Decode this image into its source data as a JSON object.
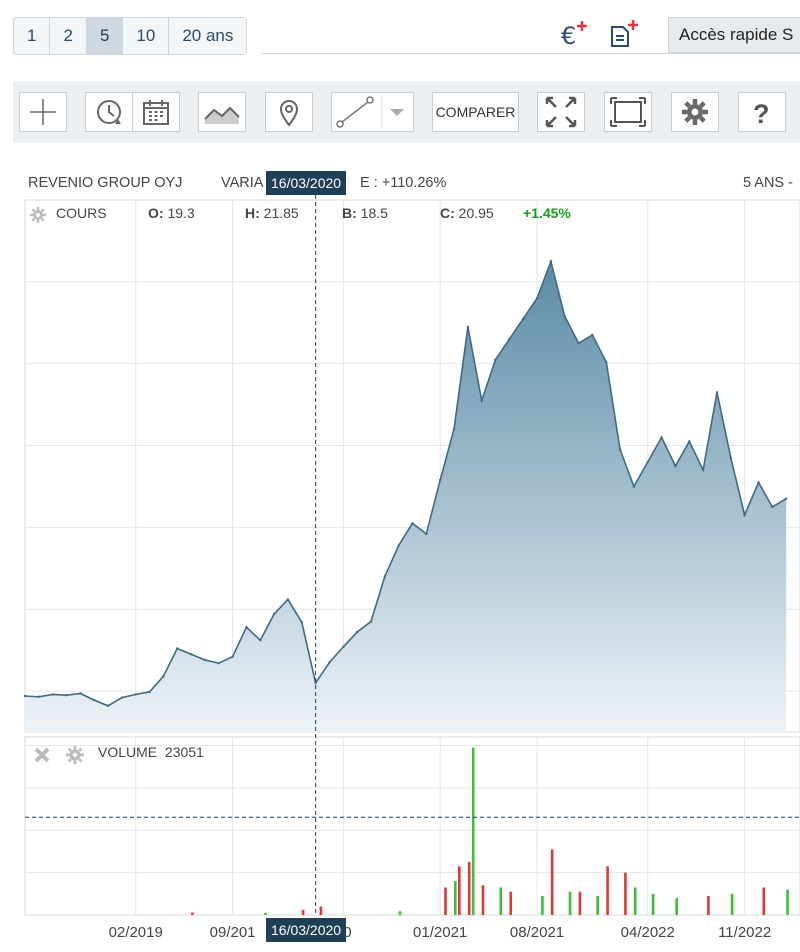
{
  "period_tabs": [
    {
      "label": "1",
      "active": false
    },
    {
      "label": "2",
      "active": false
    },
    {
      "label": "5",
      "active": true
    },
    {
      "label": "10",
      "active": false
    },
    {
      "label": "20 ans",
      "active": false
    }
  ],
  "quick_access": "Accès rapide S",
  "toolbar": {
    "compare_label": "COMPARER"
  },
  "info": {
    "name": "REVENIO GROUP OYJ",
    "variation_prefix": "VARIA",
    "variation_suffix": "E : +110.26%",
    "period": "5 ANS -"
  },
  "cursor_date": "16/03/2020",
  "ohlc": {
    "label": "COURS",
    "open_label": "O:",
    "open": "19.3",
    "high_label": "H:",
    "high": "21.85",
    "low_label": "B:",
    "low": "18.5",
    "close_label": "C:",
    "close": "20.95",
    "change": "+1.45%"
  },
  "volume": {
    "label": "VOLUME",
    "value": "23051"
  },
  "colors": {
    "line": "#3f6a85",
    "fill_top": "#5b8ba6",
    "fill_bottom": "#eef3f7",
    "vol_up": "#3cbf36",
    "vol_down": "#e0383a",
    "badge": "#1f3f57",
    "positive": "#1a9a1a"
  },
  "chart_data": {
    "type": "area",
    "x_tick_labels": [
      "02/2019",
      "09/201",
      "20",
      "01/2021",
      "08/2021",
      "04/2022",
      "11/2022"
    ],
    "price_points": [
      [
        "2018-06",
        19.4
      ],
      [
        "2018-07",
        19.3
      ],
      [
        "2018-08",
        19.6
      ],
      [
        "2018-09",
        19.5
      ],
      [
        "2018-10",
        19.7
      ],
      [
        "2018-11",
        18.9
      ],
      [
        "2018-12",
        18.2
      ],
      [
        "2019-01",
        19.2
      ],
      [
        "2019-02",
        19.6
      ],
      [
        "2019-03",
        19.9
      ],
      [
        "2019-04",
        21.8
      ],
      [
        "2019-05",
        25.2
      ],
      [
        "2019-06",
        24.5
      ],
      [
        "2019-07",
        23.8
      ],
      [
        "2019-08",
        23.4
      ],
      [
        "2019-09",
        24.2
      ],
      [
        "2019-10",
        27.8
      ],
      [
        "2019-11",
        26.2
      ],
      [
        "2019-12",
        29.4
      ],
      [
        "2020-01",
        31.2
      ],
      [
        "2020-02",
        28.4
      ],
      [
        "2020-03",
        21.0
      ],
      [
        "2020-04",
        23.5
      ],
      [
        "2020-05",
        25.4
      ],
      [
        "2020-06",
        27.2
      ],
      [
        "2020-07",
        28.5
      ],
      [
        "2020-08",
        34.0
      ],
      [
        "2020-09",
        37.8
      ],
      [
        "2020-10",
        40.5
      ],
      [
        "2020-11",
        39.2
      ],
      [
        "2020-12",
        45.8
      ],
      [
        "2021-01",
        52.0
      ],
      [
        "2021-02",
        64.5
      ],
      [
        "2021-03",
        55.5
      ],
      [
        "2021-04",
        60.5
      ],
      [
        "2021-05",
        63.0
      ],
      [
        "2021-06",
        65.5
      ],
      [
        "2021-07",
        68.0
      ],
      [
        "2021-08",
        72.5
      ],
      [
        "2021-09",
        65.8
      ],
      [
        "2021-10",
        62.5
      ],
      [
        "2021-11",
        63.5
      ],
      [
        "2021-12",
        60.2
      ],
      [
        "2022-01",
        49.5
      ],
      [
        "2022-02",
        45.0
      ],
      [
        "2022-03",
        48.0
      ],
      [
        "2022-04",
        51.0
      ],
      [
        "2022-05",
        47.5
      ],
      [
        "2022-06",
        50.5
      ],
      [
        "2022-07",
        47.0
      ],
      [
        "2022-08",
        56.5
      ],
      [
        "2022-09",
        48.5
      ],
      [
        "2022-10",
        41.5
      ],
      [
        "2022-11",
        45.5
      ],
      [
        "2022-12",
        42.5
      ],
      [
        "2023-01",
        43.5
      ]
    ],
    "y_range": [
      15,
      80
    ],
    "volume_threshold": 23051,
    "volume_range": [
      0,
      42000
    ],
    "volume_bars": [
      [
        "2019-06",
        600,
        "down"
      ],
      [
        "2019-11",
        500,
        "up"
      ],
      [
        "2020-02",
        1200,
        "down"
      ],
      [
        "2020-03",
        2000,
        "down"
      ],
      [
        "2020-09",
        900,
        "up"
      ],
      [
        "2020-12",
        6500,
        "down"
      ],
      [
        "2021-01",
        8000,
        "up"
      ],
      [
        "2021-01",
        11500,
        "down"
      ],
      [
        "2021-02",
        12500,
        "down"
      ],
      [
        "2021-02",
        39500,
        "up"
      ],
      [
        "2021-03",
        7000,
        "down"
      ],
      [
        "2021-04",
        6500,
        "up"
      ],
      [
        "2021-05",
        5500,
        "down"
      ],
      [
        "2021-07",
        4500,
        "up"
      ],
      [
        "2021-08",
        15500,
        "down"
      ],
      [
        "2021-09",
        5500,
        "up"
      ],
      [
        "2021-10",
        5500,
        "down"
      ],
      [
        "2021-11",
        4500,
        "up"
      ],
      [
        "2021-12",
        11500,
        "down"
      ],
      [
        "2022-01",
        10000,
        "down"
      ],
      [
        "2022-02",
        6500,
        "up"
      ],
      [
        "2022-03",
        5000,
        "up"
      ],
      [
        "2022-05",
        4000,
        "up"
      ],
      [
        "2022-07",
        4500,
        "down"
      ],
      [
        "2022-09",
        5000,
        "up"
      ],
      [
        "2022-11",
        6500,
        "down"
      ],
      [
        "2023-01",
        6000,
        "up"
      ]
    ],
    "grid": true,
    "cursor_x": "2020-03"
  }
}
